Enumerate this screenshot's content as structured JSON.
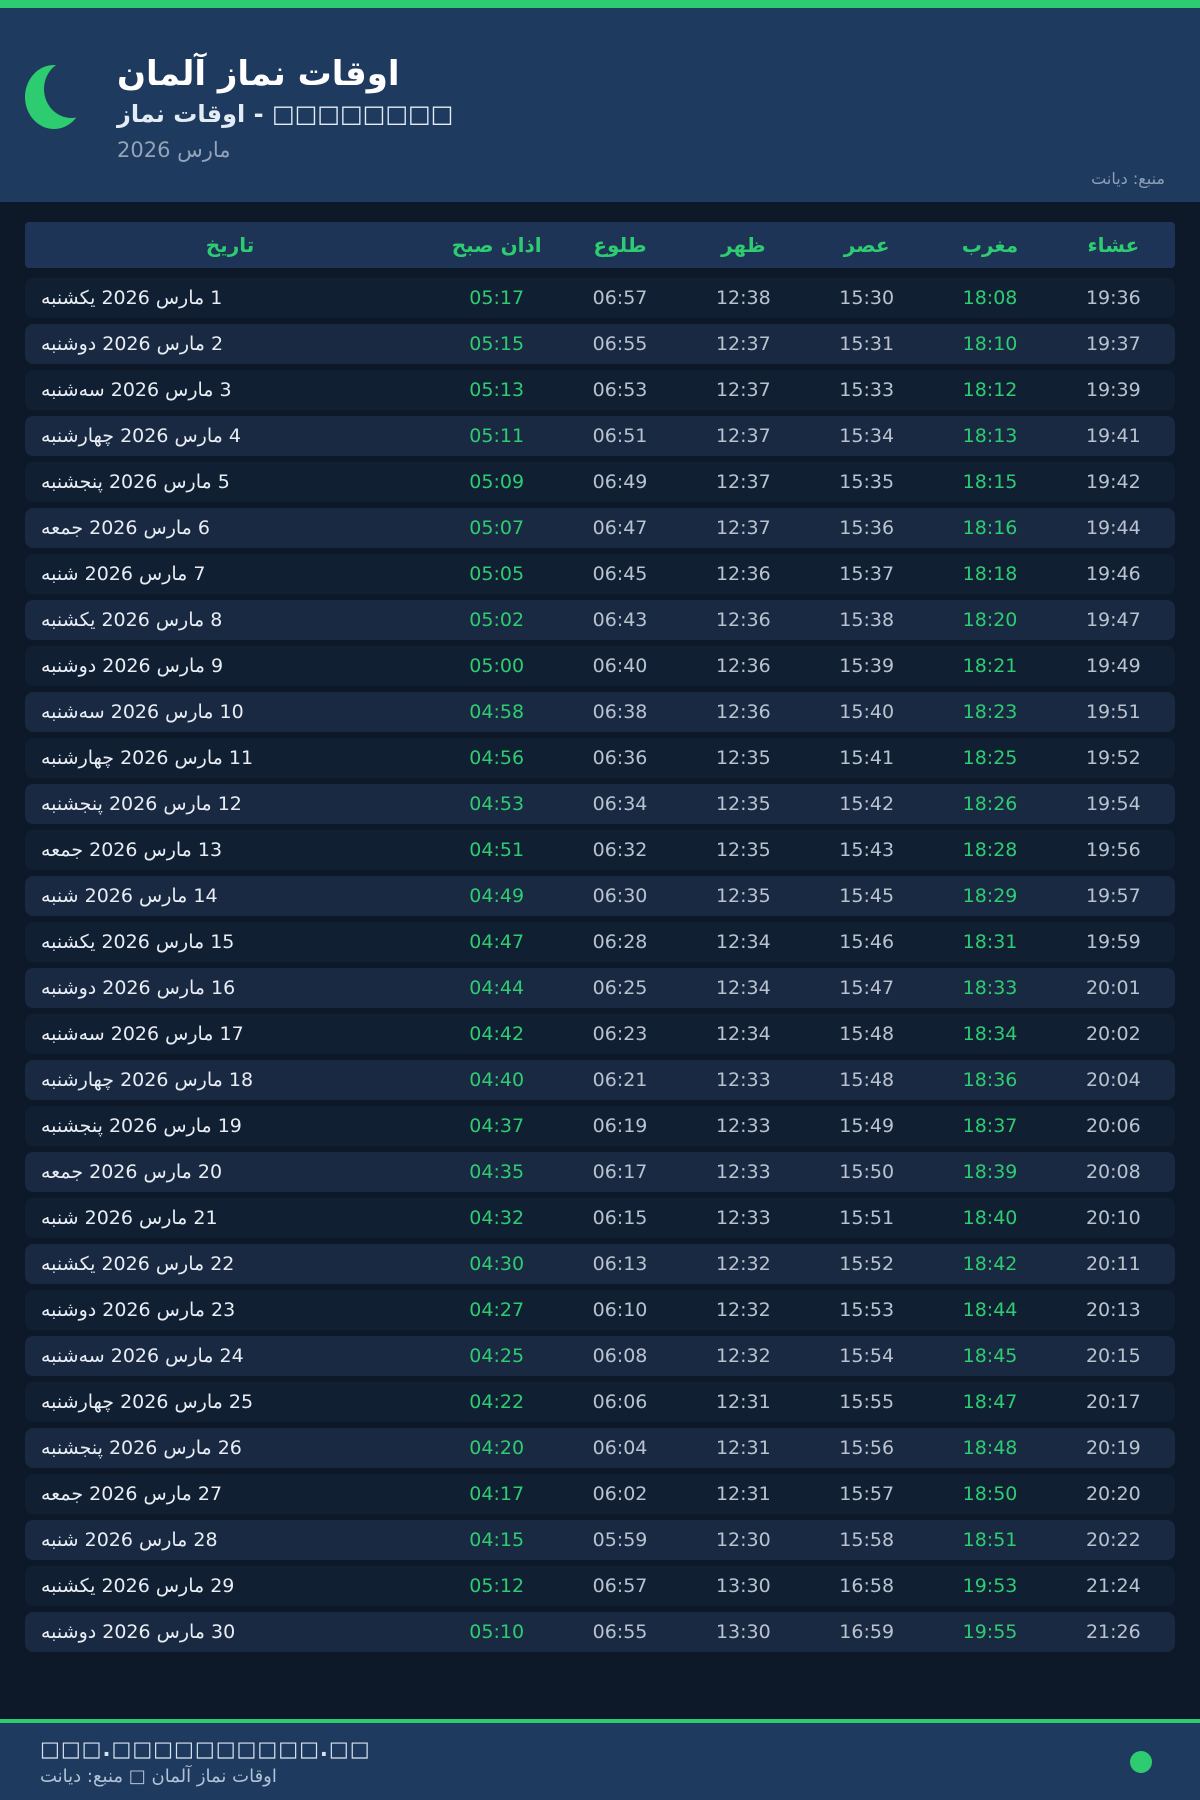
{
  "accent_color": "#2ecc71",
  "theme_color": "#1e3a5f",
  "header": {
    "logo": "crescent-moon-icon",
    "title": "اوقات نماز آلمان",
    "subtitle": "اوقات نماز - □□□□□□□□",
    "month": "مارس 2026",
    "source": "منبع: دیانت"
  },
  "table": {
    "headers": [
      "تاریخ",
      "اذان صبح",
      "طلوع",
      "ظهر",
      "عصر",
      "مغرب",
      "عشاء"
    ],
    "rows": [
      {
        "date": "1 مارس 2026 یکشنبه",
        "fajr": "05:17",
        "sunrise": "06:57",
        "dhuhr": "12:38",
        "asr": "15:30",
        "maghrib": "18:08",
        "isha": "19:36"
      },
      {
        "date": "2 مارس 2026 دوشنبه",
        "fajr": "05:15",
        "sunrise": "06:55",
        "dhuhr": "12:37",
        "asr": "15:31",
        "maghrib": "18:10",
        "isha": "19:37"
      },
      {
        "date": "3 مارس 2026 سه‌شنبه",
        "fajr": "05:13",
        "sunrise": "06:53",
        "dhuhr": "12:37",
        "asr": "15:33",
        "maghrib": "18:12",
        "isha": "19:39"
      },
      {
        "date": "4 مارس 2026 چهارشنبه",
        "fajr": "05:11",
        "sunrise": "06:51",
        "dhuhr": "12:37",
        "asr": "15:34",
        "maghrib": "18:13",
        "isha": "19:41"
      },
      {
        "date": "5 مارس 2026 پنجشنبه",
        "fajr": "05:09",
        "sunrise": "06:49",
        "dhuhr": "12:37",
        "asr": "15:35",
        "maghrib": "18:15",
        "isha": "19:42"
      },
      {
        "date": "6 مارس 2026 جمعه",
        "fajr": "05:07",
        "sunrise": "06:47",
        "dhuhr": "12:37",
        "asr": "15:36",
        "maghrib": "18:16",
        "isha": "19:44"
      },
      {
        "date": "7 مارس 2026 شنبه",
        "fajr": "05:05",
        "sunrise": "06:45",
        "dhuhr": "12:36",
        "asr": "15:37",
        "maghrib": "18:18",
        "isha": "19:46"
      },
      {
        "date": "8 مارس 2026 یکشنبه",
        "fajr": "05:02",
        "sunrise": "06:43",
        "dhuhr": "12:36",
        "asr": "15:38",
        "maghrib": "18:20",
        "isha": "19:47"
      },
      {
        "date": "9 مارس 2026 دوشنبه",
        "fajr": "05:00",
        "sunrise": "06:40",
        "dhuhr": "12:36",
        "asr": "15:39",
        "maghrib": "18:21",
        "isha": "19:49"
      },
      {
        "date": "10 مارس 2026 سه‌شنبه",
        "fajr": "04:58",
        "sunrise": "06:38",
        "dhuhr": "12:36",
        "asr": "15:40",
        "maghrib": "18:23",
        "isha": "19:51"
      },
      {
        "date": "11 مارس 2026 چهارشنبه",
        "fajr": "04:56",
        "sunrise": "06:36",
        "dhuhr": "12:35",
        "asr": "15:41",
        "maghrib": "18:25",
        "isha": "19:52"
      },
      {
        "date": "12 مارس 2026 پنجشنبه",
        "fajr": "04:53",
        "sunrise": "06:34",
        "dhuhr": "12:35",
        "asr": "15:42",
        "maghrib": "18:26",
        "isha": "19:54"
      },
      {
        "date": "13 مارس 2026 جمعه",
        "fajr": "04:51",
        "sunrise": "06:32",
        "dhuhr": "12:35",
        "asr": "15:43",
        "maghrib": "18:28",
        "isha": "19:56"
      },
      {
        "date": "14 مارس 2026 شنبه",
        "fajr": "04:49",
        "sunrise": "06:30",
        "dhuhr": "12:35",
        "asr": "15:45",
        "maghrib": "18:29",
        "isha": "19:57"
      },
      {
        "date": "15 مارس 2026 یکشنبه",
        "fajr": "04:47",
        "sunrise": "06:28",
        "dhuhr": "12:34",
        "asr": "15:46",
        "maghrib": "18:31",
        "isha": "19:59"
      },
      {
        "date": "16 مارس 2026 دوشنبه",
        "fajr": "04:44",
        "sunrise": "06:25",
        "dhuhr": "12:34",
        "asr": "15:47",
        "maghrib": "18:33",
        "isha": "20:01"
      },
      {
        "date": "17 مارس 2026 سه‌شنبه",
        "fajr": "04:42",
        "sunrise": "06:23",
        "dhuhr": "12:34",
        "asr": "15:48",
        "maghrib": "18:34",
        "isha": "20:02"
      },
      {
        "date": "18 مارس 2026 چهارشنبه",
        "fajr": "04:40",
        "sunrise": "06:21",
        "dhuhr": "12:33",
        "asr": "15:48",
        "maghrib": "18:36",
        "isha": "20:04"
      },
      {
        "date": "19 مارس 2026 پنجشنبه",
        "fajr": "04:37",
        "sunrise": "06:19",
        "dhuhr": "12:33",
        "asr": "15:49",
        "maghrib": "18:37",
        "isha": "20:06"
      },
      {
        "date": "20 مارس 2026 جمعه",
        "fajr": "04:35",
        "sunrise": "06:17",
        "dhuhr": "12:33",
        "asr": "15:50",
        "maghrib": "18:39",
        "isha": "20:08"
      },
      {
        "date": "21 مارس 2026 شنبه",
        "fajr": "04:32",
        "sunrise": "06:15",
        "dhuhr": "12:33",
        "asr": "15:51",
        "maghrib": "18:40",
        "isha": "20:10"
      },
      {
        "date": "22 مارس 2026 یکشنبه",
        "fajr": "04:30",
        "sunrise": "06:13",
        "dhuhr": "12:32",
        "asr": "15:52",
        "maghrib": "18:42",
        "isha": "20:11"
      },
      {
        "date": "23 مارس 2026 دوشنبه",
        "fajr": "04:27",
        "sunrise": "06:10",
        "dhuhr": "12:32",
        "asr": "15:53",
        "maghrib": "18:44",
        "isha": "20:13"
      },
      {
        "date": "24 مارس 2026 سه‌شنبه",
        "fajr": "04:25",
        "sunrise": "06:08",
        "dhuhr": "12:32",
        "asr": "15:54",
        "maghrib": "18:45",
        "isha": "20:15"
      },
      {
        "date": "25 مارس 2026 چهارشنبه",
        "fajr": "04:22",
        "sunrise": "06:06",
        "dhuhr": "12:31",
        "asr": "15:55",
        "maghrib": "18:47",
        "isha": "20:17"
      },
      {
        "date": "26 مارس 2026 پنجشنبه",
        "fajr": "04:20",
        "sunrise": "06:04",
        "dhuhr": "12:31",
        "asr": "15:56",
        "maghrib": "18:48",
        "isha": "20:19"
      },
      {
        "date": "27 مارس 2026 جمعه",
        "fajr": "04:17",
        "sunrise": "06:02",
        "dhuhr": "12:31",
        "asr": "15:57",
        "maghrib": "18:50",
        "isha": "20:20"
      },
      {
        "date": "28 مارس 2026 شنبه",
        "fajr": "04:15",
        "sunrise": "05:59",
        "dhuhr": "12:30",
        "asr": "15:58",
        "maghrib": "18:51",
        "isha": "20:22"
      },
      {
        "date": "29 مارس 2026 یکشنبه",
        "fajr": "05:12",
        "sunrise": "06:57",
        "dhuhr": "13:30",
        "asr": "16:58",
        "maghrib": "19:53",
        "isha": "21:24"
      },
      {
        "date": "30 مارس 2026 دوشنبه",
        "fajr": "05:10",
        "sunrise": "06:55",
        "dhuhr": "13:30",
        "asr": "16:59",
        "maghrib": "19:55",
        "isha": "21:26"
      }
    ]
  },
  "footer": {
    "line1": "□□□.□□□□□□□□□□.□□",
    "line2": "اوقات نماز آلمان □ منبع: دیانت",
    "dot": "green-dot"
  }
}
